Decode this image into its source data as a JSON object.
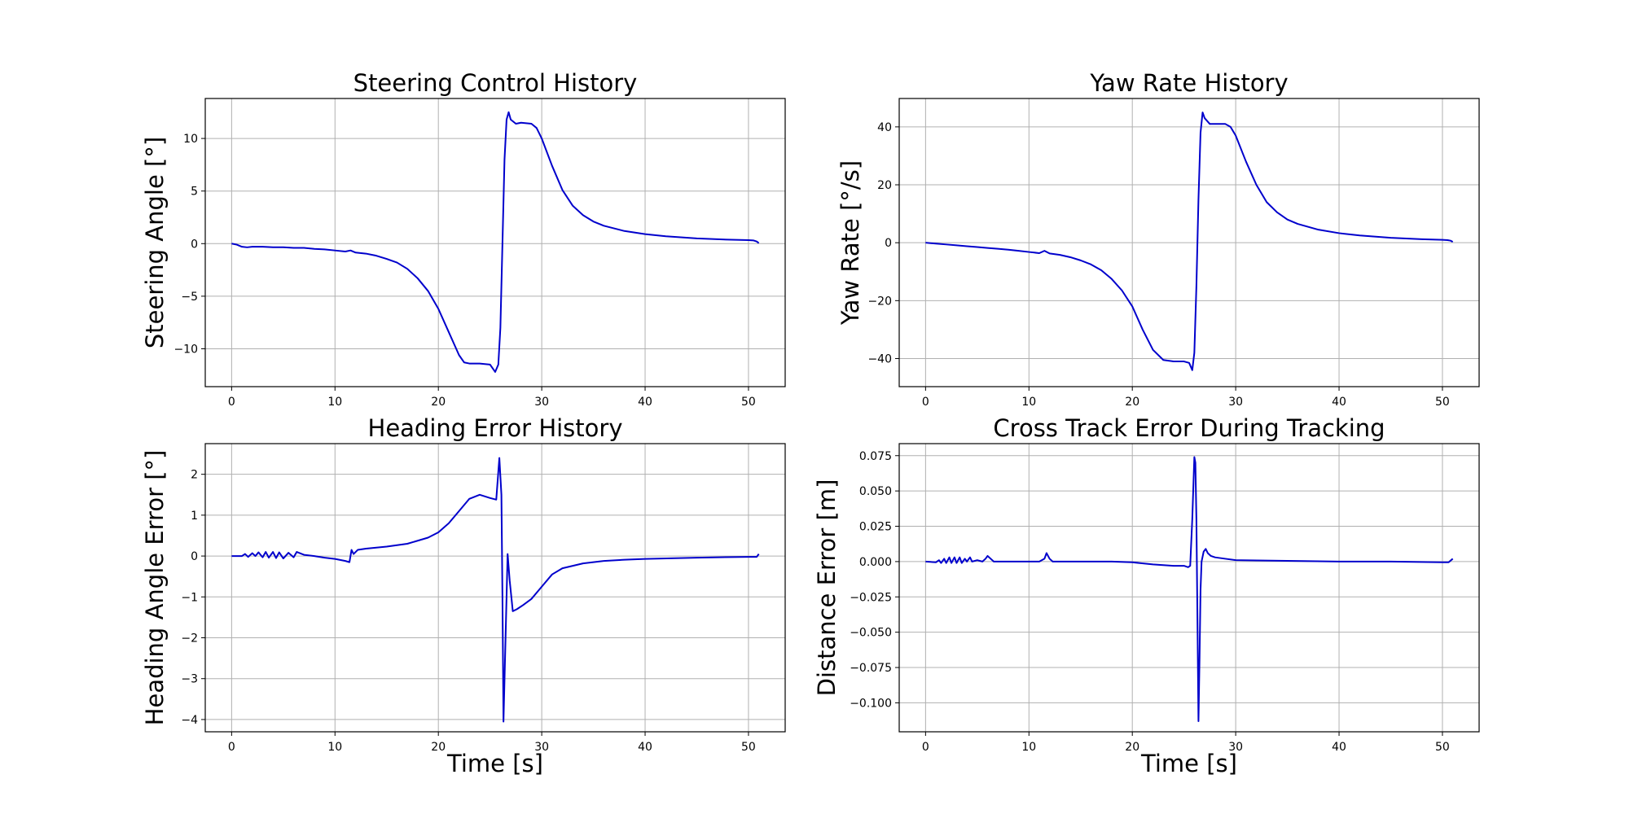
{
  "chart_data": [
    {
      "type": "line",
      "title": "Steering Control History",
      "xlabel": "",
      "ylabel": "Steering Angle [°]",
      "xlim": [
        -2.55,
        53.55
      ],
      "ylim": [
        -13.6,
        13.8
      ],
      "xticks": [
        0,
        10,
        20,
        30,
        40,
        50
      ],
      "yticks": [
        -10,
        -5,
        0,
        5,
        10
      ],
      "yticklabels": [
        "−10",
        "−5",
        "0",
        "5",
        "10"
      ],
      "grid": true,
      "color": "#0000cc",
      "series": [
        {
          "x": [
            0,
            0.5,
            1,
            1.5,
            2,
            3,
            4,
            5,
            6,
            7,
            8,
            9,
            10,
            11,
            11.5,
            12,
            13,
            14,
            15,
            16,
            17,
            18,
            19,
            20,
            21,
            22,
            22.5,
            23,
            24,
            25,
            25.5,
            25.8,
            26,
            26.2,
            26.4,
            26.6,
            26.8,
            27,
            27.5,
            28,
            29,
            29.5,
            30,
            31,
            32,
            33,
            34,
            35,
            36,
            38,
            40,
            42,
            45,
            48,
            50,
            50.5,
            50.8,
            51
          ],
          "y": [
            0,
            -0.1,
            -0.3,
            -0.35,
            -0.3,
            -0.3,
            -0.35,
            -0.35,
            -0.4,
            -0.4,
            -0.5,
            -0.55,
            -0.65,
            -0.75,
            -0.65,
            -0.85,
            -0.95,
            -1.15,
            -1.45,
            -1.8,
            -2.4,
            -3.3,
            -4.5,
            -6.2,
            -8.4,
            -10.6,
            -11.3,
            -11.4,
            -11.4,
            -11.5,
            -12.2,
            -11.5,
            -8,
            0,
            8,
            11.8,
            12.5,
            11.8,
            11.4,
            11.5,
            11.4,
            11,
            10,
            7.4,
            5.1,
            3.6,
            2.7,
            2.1,
            1.7,
            1.2,
            0.9,
            0.7,
            0.5,
            0.38,
            0.33,
            0.3,
            0.2,
            0.05
          ]
        }
      ]
    },
    {
      "type": "line",
      "title": "Yaw Rate History",
      "xlabel": "",
      "ylabel": "Yaw Rate [°/s]",
      "xlim": [
        -2.55,
        53.55
      ],
      "ylim": [
        -49.7,
        49.8
      ],
      "xticks": [
        0,
        10,
        20,
        30,
        40,
        50
      ],
      "yticks": [
        -40,
        -20,
        0,
        20,
        40
      ],
      "yticklabels": [
        "−40",
        "−20",
        "0",
        "20",
        "40"
      ],
      "grid": true,
      "color": "#0000cc",
      "series": [
        {
          "x": [
            0,
            1,
            2,
            3,
            4,
            5,
            6,
            7,
            8,
            9,
            10,
            11,
            11.5,
            12,
            13,
            14,
            15,
            16,
            17,
            18,
            19,
            20,
            21,
            22,
            23,
            24,
            25,
            25.5,
            25.8,
            26,
            26.2,
            26.4,
            26.6,
            26.8,
            27,
            27.5,
            28,
            29,
            29.5,
            30,
            31,
            32,
            33,
            34,
            35,
            36,
            38,
            40,
            42,
            45,
            48,
            50,
            50.5,
            50.8,
            51
          ],
          "y": [
            0,
            -0.3,
            -0.6,
            -0.9,
            -1.2,
            -1.5,
            -1.8,
            -2.1,
            -2.4,
            -2.8,
            -3.2,
            -3.6,
            -2.8,
            -3.7,
            -4.2,
            -5,
            -6.1,
            -7.5,
            -9.5,
            -12.5,
            -16.5,
            -22,
            -30,
            -37,
            -40.5,
            -41,
            -41,
            -41.5,
            -44,
            -38,
            -15,
            15,
            38,
            45,
            43,
            41,
            41,
            41,
            40,
            37,
            28,
            20,
            14,
            10.5,
            8,
            6.5,
            4.5,
            3.3,
            2.5,
            1.7,
            1.2,
            1,
            0.9,
            0.7,
            0.3
          ]
        }
      ]
    },
    {
      "type": "line",
      "title": "Heading Error History",
      "xlabel": "Time [s]",
      "ylabel": "Heading Angle Error [°]",
      "xlim": [
        -2.55,
        53.55
      ],
      "ylim": [
        -4.3,
        2.75
      ],
      "xticks": [
        0,
        10,
        20,
        30,
        40,
        50
      ],
      "yticks": [
        -4,
        -3,
        -2,
        -1,
        0,
        1,
        2
      ],
      "yticklabels": [
        "−4",
        "−3",
        "−2",
        "−1",
        "0",
        "1",
        "2"
      ],
      "grid": true,
      "color": "#0000cc",
      "series": [
        {
          "x": [
            0,
            1,
            1.3,
            1.6,
            2,
            2.3,
            2.6,
            3,
            3.3,
            3.6,
            4,
            4.3,
            4.6,
            5,
            5.5,
            6,
            6.3,
            7,
            8,
            9,
            10,
            11,
            11.4,
            11.6,
            11.8,
            12.2,
            13,
            15,
            17,
            19,
            20,
            21,
            22,
            23,
            24,
            25,
            25.6,
            25.9,
            26.1,
            26.2,
            26.3,
            26.5,
            26.7,
            26.9,
            27.2,
            27.6,
            28.2,
            29,
            30,
            31,
            32,
            34,
            36,
            38,
            40,
            45,
            50,
            50.8,
            51
          ],
          "y": [
            0,
            0,
            0.05,
            -0.02,
            0.07,
            0,
            0.09,
            -0.03,
            0.1,
            -0.04,
            0.1,
            -0.05,
            0.09,
            -0.06,
            0.08,
            -0.03,
            0.1,
            0.03,
            0,
            -0.04,
            -0.07,
            -0.12,
            -0.15,
            0.15,
            0.05,
            0.15,
            0.18,
            0.23,
            0.3,
            0.45,
            0.58,
            0.8,
            1.1,
            1.4,
            1.5,
            1.42,
            1.38,
            2.4,
            1.5,
            -1,
            -4.05,
            -2,
            0.05,
            -0.6,
            -1.35,
            -1.3,
            -1.2,
            -1.05,
            -0.75,
            -0.45,
            -0.3,
            -0.18,
            -0.12,
            -0.09,
            -0.07,
            -0.04,
            -0.02,
            -0.02,
            0.05
          ]
        }
      ]
    },
    {
      "type": "line",
      "title": "Cross Track Error During Tracking",
      "xlabel": "Time [s]",
      "ylabel": "Distance Error [m]",
      "xlim": [
        -2.55,
        53.55
      ],
      "ylim": [
        -0.1205,
        0.0835
      ],
      "xticks": [
        0,
        10,
        20,
        30,
        40,
        50
      ],
      "yticks": [
        -0.1,
        -0.075,
        -0.05,
        -0.025,
        0,
        0.025,
        0.05,
        0.075
      ],
      "yticklabels": [
        "−0.100",
        "−0.075",
        "−0.050",
        "−0.025",
        "0.000",
        "0.025",
        "0.050",
        "0.075"
      ],
      "grid": true,
      "color": "#0000cc",
      "series": [
        {
          "x": [
            0,
            1,
            1.3,
            1.5,
            1.8,
            2,
            2.3,
            2.5,
            2.8,
            3,
            3.3,
            3.5,
            3.8,
            4,
            4.3,
            4.5,
            5,
            5.5,
            5.8,
            6,
            6.3,
            6.6,
            7,
            8,
            10,
            11,
            11.5,
            11.7,
            12,
            12.3,
            13,
            15,
            18,
            20,
            22,
            24,
            25,
            25.4,
            25.6,
            25.8,
            26,
            26.1,
            26.2,
            26.3,
            26.4,
            26.5,
            26.6,
            26.7,
            26.9,
            27.1,
            27.3,
            27.6,
            28,
            29,
            30,
            35,
            40,
            45,
            50,
            50.6,
            51
          ],
          "y": [
            0,
            -0.0005,
            0.001,
            -0.001,
            0.002,
            -0.001,
            0.003,
            -0.001,
            0.003,
            -0.001,
            0.003,
            -0.001,
            0.002,
            0,
            0.003,
            0,
            0.001,
            0,
            0.002,
            0.004,
            0.002,
            0,
            0,
            0,
            0,
            0,
            0.002,
            0.006,
            0.002,
            0,
            0,
            0,
            0,
            -0.0005,
            -0.002,
            -0.003,
            -0.003,
            -0.004,
            -0.003,
            0.03,
            0.074,
            0.07,
            0.03,
            -0.04,
            -0.113,
            -0.07,
            -0.02,
            0,
            0.007,
            0.009,
            0.006,
            0.004,
            0.003,
            0.002,
            0.001,
            0.0005,
            0,
            0,
            -0.0005,
            -0.0005,
            0.002
          ]
        }
      ]
    }
  ]
}
